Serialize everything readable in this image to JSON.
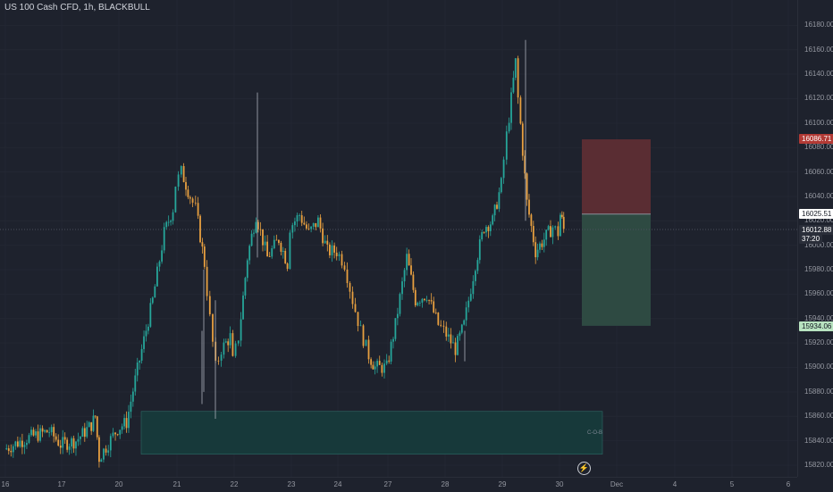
{
  "title": "US 100 Cash CFD, 1h, BLACKBULL",
  "price_axis_ticks": [
    "16180.00",
    "16160.00",
    "16140.00",
    "16120.00",
    "16100.00",
    "16080.00",
    "16060.00",
    "16040.00",
    "16020.00",
    "16000.00",
    "15980.00",
    "15960.00",
    "15940.00",
    "15920.00",
    "15900.00",
    "15880.00",
    "15860.00",
    "15840.00",
    "15820.00"
  ],
  "time_axis_ticks": [
    "16",
    "17",
    "20",
    "21",
    "22",
    "23",
    "24",
    "27",
    "28",
    "29",
    "30",
    "Dec",
    "4",
    "5",
    "6"
  ],
  "badges": {
    "stop": "16086.71",
    "entry": "16025.51",
    "last": "16012.88",
    "countdown": "37:20",
    "target": "15934.06"
  },
  "zone_label": "C-O-B",
  "colors": {
    "bg": "#1e222d",
    "up": "#26a69a",
    "down": "#e8a040",
    "stop_zone": "#5a2d33",
    "target_zone": "#2e4a42",
    "demand_zone": "#17393a",
    "stop_badge": "#b23a35",
    "target_badge": "#b8e3c0"
  },
  "icons": {
    "replay": "flash-icon"
  },
  "chart_data": {
    "type": "candlestick",
    "symbol": "US 100 Cash CFD",
    "interval": "1h",
    "ylim": [
      15812,
      16200
    ],
    "price_levels": {
      "stop_loss": 16086.71,
      "entry": 16025.51,
      "take_profit": 15934.06,
      "last": 16012.88,
      "demand_zone_top": 15864,
      "demand_zone_bottom": 15829
    },
    "path": [
      [
        "16",
        15833
      ],
      [
        "16.4",
        15842
      ],
      [
        "16.8",
        15848
      ],
      [
        "17",
        15837
      ],
      [
        "17.4",
        15840
      ],
      [
        "17.8",
        15853
      ],
      [
        "17.9",
        15860
      ],
      [
        "18",
        15826
      ],
      [
        "20",
        15850
      ],
      [
        "20.15",
        15855
      ],
      [
        "20.3",
        15890
      ],
      [
        "20.6",
        15955
      ],
      [
        "20.8",
        16010
      ],
      [
        "20.95",
        16030
      ],
      [
        "21",
        16050
      ],
      [
        "21.1",
        16060
      ],
      [
        "21.25",
        16040
      ],
      [
        "21.35",
        16030
      ],
      [
        "21.5",
        15985
      ],
      [
        "21.6",
        15940
      ],
      [
        "21.7",
        15900
      ],
      [
        "21.8",
        15915
      ],
      [
        "21.95",
        15925
      ],
      [
        "22",
        15905
      ],
      [
        "22.1",
        15925
      ],
      [
        "22.25",
        15990
      ],
      [
        "22.4",
        16025
      ],
      [
        "22.6",
        15990
      ],
      [
        "22.8",
        16005
      ],
      [
        "22.95",
        15985
      ],
      [
        "23",
        16015
      ],
      [
        "23.2",
        16025
      ],
      [
        "23.4",
        16010
      ],
      [
        "23.6",
        16020
      ],
      [
        "23.8",
        15995
      ],
      [
        "24",
        15995
      ],
      [
        "24.2",
        15985
      ],
      [
        "24.4",
        15955
      ],
      [
        "24.6",
        15930
      ],
      [
        "24.8",
        15910
      ],
      [
        "24.95",
        15900
      ],
      [
        "27",
        15900
      ],
      [
        "27.15",
        15935
      ],
      [
        "27.35",
        15990
      ],
      [
        "27.5",
        15955
      ],
      [
        "27.7",
        15960
      ],
      [
        "27.9",
        15935
      ],
      [
        "28",
        15930
      ],
      [
        "28.2",
        15915
      ],
      [
        "28.35",
        15935
      ],
      [
        "28.55",
        15985
      ],
      [
        "28.7",
        16015
      ],
      [
        "28.85",
        16020
      ],
      [
        "29",
        16050
      ],
      [
        "29.1",
        16090
      ],
      [
        "29.25",
        16150
      ],
      [
        "29.3",
        16120
      ],
      [
        "29.45",
        16035
      ],
      [
        "29.6",
        15995
      ],
      [
        "29.75",
        16005
      ],
      [
        "29.9",
        16015
      ],
      [
        "30",
        16010
      ],
      [
        "30.1",
        16025
      ],
      [
        "30.2",
        16020
      ],
      [
        "30.3",
        16012.88
      ]
    ],
    "x_axis": [
      "16",
      "17",
      "20",
      "21",
      "22",
      "23",
      "24",
      "27",
      "28",
      "29",
      "30",
      "Dec",
      "4",
      "5",
      "6"
    ]
  }
}
